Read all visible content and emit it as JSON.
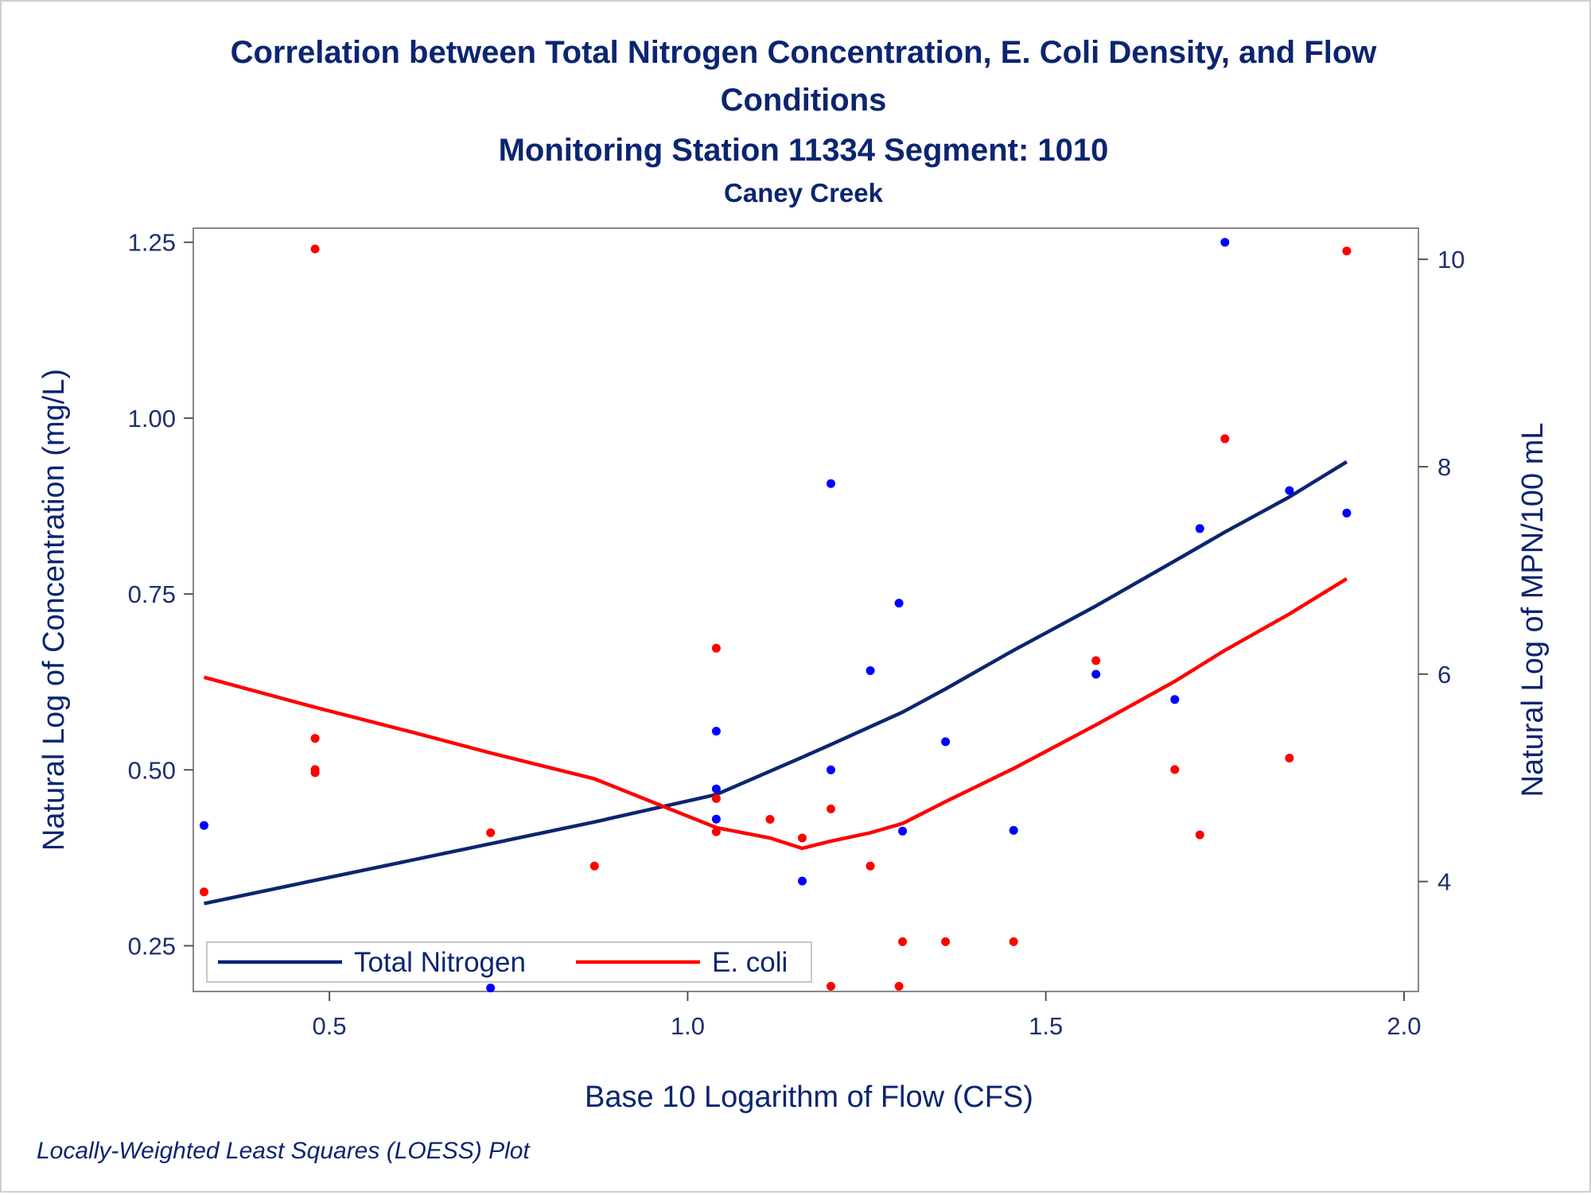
{
  "titles": {
    "line1": "Correlation between Total Nitrogen Concentration, E. Coli Density, and Flow",
    "line2": "Conditions",
    "line3": "Monitoring Station 11334 Segment: 1010",
    "line4": "Caney Creek"
  },
  "footnote": "Locally-Weighted Least Squares (LOESS) Plot",
  "chart_data": {
    "type": "scatter",
    "xlabel": "Base 10 Logarithm of Flow (CFS)",
    "ylabel": "Natural Log of Concentration (mg/L)",
    "y2label": "Natural Log of MPN/100 mL",
    "xlim": [
      0.31,
      2.02
    ],
    "ylim": [
      0.185,
      1.27
    ],
    "y2lim": [
      2.94,
      10.3
    ],
    "xticks": [
      0.5,
      1.0,
      1.5,
      2.0
    ],
    "xtick_labels": [
      "0.5",
      "1.0",
      "1.5",
      "2.0"
    ],
    "yticks": [
      0.25,
      0.5,
      0.75,
      1.0,
      1.25
    ],
    "ytick_labels": [
      "0.25",
      "0.50",
      "0.75",
      "1.00",
      "1.25"
    ],
    "y2ticks": [
      4,
      6,
      8,
      10
    ],
    "y2tick_labels": [
      "4",
      "6",
      "8",
      "10"
    ],
    "grid": false,
    "legend_position": "bottom-left",
    "series": [
      {
        "name": "Total Nitrogen",
        "axis": "left",
        "color": "#0b2570",
        "point_color": "#0000ff",
        "points": [
          [
            0.325,
            0.421
          ],
          [
            0.725,
            0.19
          ],
          [
            1.04,
            0.555
          ],
          [
            1.04,
            0.473
          ],
          [
            1.04,
            0.43
          ],
          [
            1.16,
            0.342
          ],
          [
            1.2,
            0.907
          ],
          [
            1.2,
            0.5
          ],
          [
            1.255,
            0.641
          ],
          [
            1.295,
            0.737
          ],
          [
            1.3,
            0.413
          ],
          [
            1.36,
            0.54
          ],
          [
            1.455,
            0.414
          ],
          [
            1.57,
            0.636
          ],
          [
            1.68,
            0.6
          ],
          [
            1.715,
            0.843
          ],
          [
            1.75,
            1.25
          ],
          [
            1.84,
            0.897
          ],
          [
            1.92,
            0.865
          ]
        ],
        "loess": [
          [
            0.325,
            0.31
          ],
          [
            0.48,
            0.343
          ],
          [
            0.725,
            0.395
          ],
          [
            0.87,
            0.426
          ],
          [
            1.04,
            0.465
          ],
          [
            1.16,
            0.518
          ],
          [
            1.2,
            0.536
          ],
          [
            1.3,
            0.582
          ],
          [
            1.36,
            0.615
          ],
          [
            1.455,
            0.67
          ],
          [
            1.57,
            0.733
          ],
          [
            1.68,
            0.797
          ],
          [
            1.75,
            0.838
          ],
          [
            1.84,
            0.888
          ],
          [
            1.92,
            0.938
          ]
        ]
      },
      {
        "name": "E. coli",
        "axis": "right",
        "color": "#ff0000",
        "point_color": "#ff0000",
        "points": [
          [
            0.325,
            3.9
          ],
          [
            0.48,
            10.1
          ],
          [
            0.48,
            5.38
          ],
          [
            0.48,
            5.08
          ],
          [
            0.48,
            5.05
          ],
          [
            0.725,
            4.47
          ],
          [
            0.87,
            4.15
          ],
          [
            1.04,
            6.25
          ],
          [
            1.04,
            4.8
          ],
          [
            1.04,
            4.48
          ],
          [
            1.115,
            4.6
          ],
          [
            1.16,
            4.42
          ],
          [
            1.2,
            4.7
          ],
          [
            1.2,
            2.99
          ],
          [
            1.255,
            4.15
          ],
          [
            1.295,
            2.99
          ],
          [
            1.3,
            3.42
          ],
          [
            1.36,
            3.42
          ],
          [
            1.455,
            3.42
          ],
          [
            1.57,
            6.13
          ],
          [
            1.68,
            5.08
          ],
          [
            1.715,
            4.45
          ],
          [
            1.75,
            8.27
          ],
          [
            1.84,
            5.19
          ],
          [
            1.92,
            10.08
          ]
        ],
        "loess": [
          [
            0.325,
            5.97
          ],
          [
            0.48,
            5.68
          ],
          [
            0.61,
            5.45
          ],
          [
            0.725,
            5.24
          ],
          [
            0.87,
            4.99
          ],
          [
            1.04,
            4.52
          ],
          [
            1.115,
            4.42
          ],
          [
            1.16,
            4.32
          ],
          [
            1.2,
            4.39
          ],
          [
            1.255,
            4.47
          ],
          [
            1.3,
            4.56
          ],
          [
            1.36,
            4.77
          ],
          [
            1.455,
            5.09
          ],
          [
            1.57,
            5.51
          ],
          [
            1.68,
            5.93
          ],
          [
            1.75,
            6.23
          ],
          [
            1.84,
            6.58
          ],
          [
            1.92,
            6.92
          ]
        ]
      }
    ]
  }
}
